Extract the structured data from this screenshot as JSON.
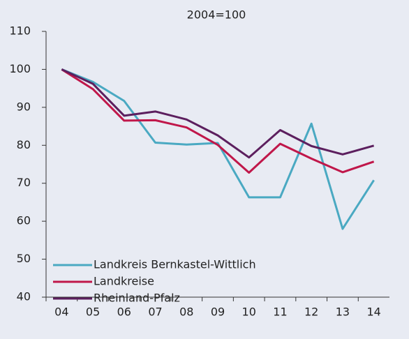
{
  "chart_data": {
    "type": "line",
    "title": "2004=100",
    "categories": [
      "04",
      "05",
      "06",
      "07",
      "08",
      "09",
      "10",
      "11",
      "12",
      "13",
      "14"
    ],
    "series": [
      {
        "name": "Landkreis Bernkastel-Wittlich",
        "color": "#4aa9c2",
        "values": [
          100,
          96.7,
          91.7,
          80.7,
          80.2,
          80.6,
          66.3,
          66.3,
          85.7,
          58.0,
          70.8
        ]
      },
      {
        "name": "Landkreise",
        "color": "#c0174a",
        "values": [
          100,
          94.8,
          86.5,
          86.6,
          84.7,
          80.1,
          72.8,
          80.4,
          76.5,
          72.9,
          75.7
        ]
      },
      {
        "name": "Rheinland-Pfalz",
        "color": "#5c1f5e",
        "values": [
          100,
          96.2,
          87.8,
          88.9,
          86.8,
          82.6,
          76.8,
          84.0,
          79.8,
          77.6,
          79.9
        ]
      }
    ],
    "ylim": [
      40,
      110
    ],
    "yticks": [
      40,
      50,
      60,
      70,
      80,
      90,
      100,
      110
    ],
    "legend": "lower left"
  }
}
